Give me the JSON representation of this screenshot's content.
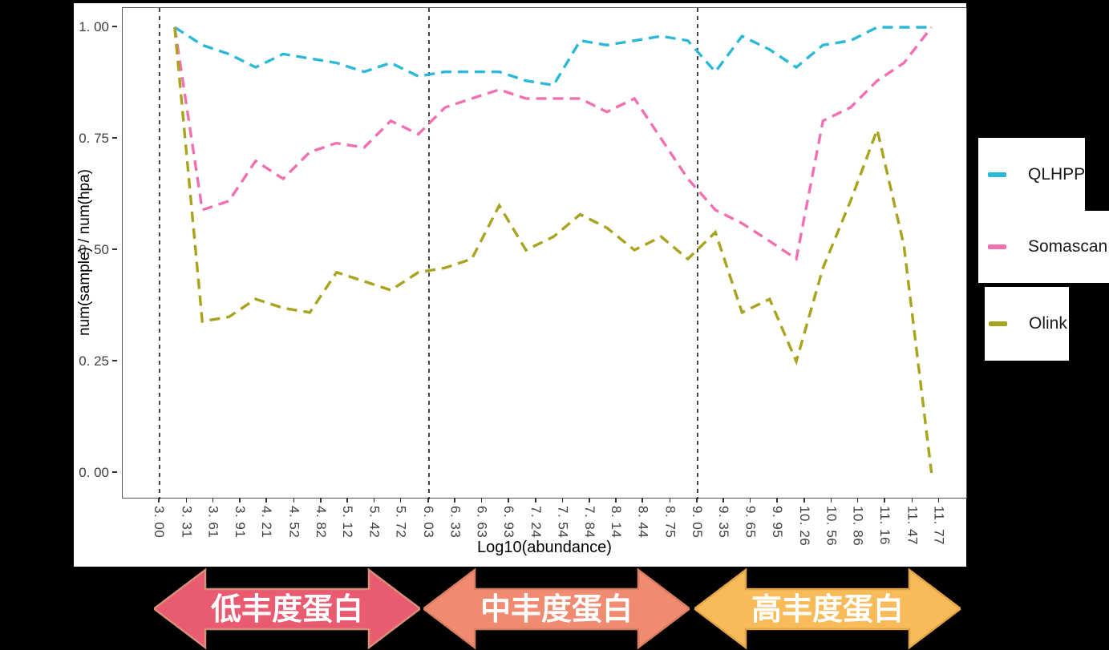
{
  "axes": {
    "x_title": "Log10(abundance)",
    "y_title": "num(sample) / num(hpa)"
  },
  "chart_data": {
    "type": "line",
    "line_style": "dashed",
    "grid": false,
    "legend_position": "right-outside",
    "xlabel": "Log10(abundance)",
    "ylabel": "num(sample) / num(hpa)",
    "xlim": [
      2.59,
      12.09
    ],
    "ylim": [
      -0.06,
      1.04
    ],
    "x_tick_values": [
      3.0,
      3.31,
      3.61,
      3.91,
      4.21,
      4.52,
      4.82,
      5.12,
      5.42,
      5.72,
      6.03,
      6.33,
      6.63,
      6.93,
      7.24,
      7.54,
      7.84,
      8.14,
      8.44,
      8.75,
      9.05,
      9.35,
      9.65,
      9.95,
      10.26,
      10.56,
      10.86,
      11.16,
      11.47,
      11.77
    ],
    "x_tick_labels": [
      "3. 00",
      "3. 31",
      "3. 61",
      "3. 91",
      "4. 21",
      "4. 52",
      "4. 82",
      "5. 12",
      "5. 42",
      "5. 72",
      "6. 03",
      "6. 33",
      "6. 63",
      "6. 93",
      "7. 24",
      "7. 54",
      "7. 84",
      "8. 14",
      "8. 44",
      "8. 75",
      "9. 05",
      "9. 35",
      "9. 65",
      "9. 95",
      "10. 26",
      "10. 56",
      "10. 86",
      "11. 16",
      "11. 47",
      "11. 77"
    ],
    "y_tick_values": [
      0.0,
      0.25,
      0.5,
      0.75,
      1.0
    ],
    "y_tick_labels": [
      "0. 00",
      "0. 25",
      "0. 50",
      "0. 75",
      "1. 00"
    ],
    "vline_x": [
      3.0,
      6.03,
      9.05
    ],
    "vline_color": "#1a1a1a",
    "x": [
      3.17,
      3.48,
      3.78,
      4.08,
      4.39,
      4.69,
      4.99,
      5.3,
      5.6,
      5.91,
      6.21,
      6.51,
      6.82,
      7.12,
      7.43,
      7.73,
      8.03,
      8.34,
      8.64,
      8.94,
      9.25,
      9.55,
      9.86,
      10.16,
      10.46,
      10.77,
      11.07,
      11.37,
      11.68
    ],
    "series": [
      {
        "name": "QLHPP",
        "color": "#2CB8D8",
        "values": [
          1.0,
          0.96,
          0.94,
          0.91,
          0.94,
          0.93,
          0.92,
          0.9,
          0.92,
          0.89,
          0.9,
          0.9,
          0.9,
          0.88,
          0.87,
          0.97,
          0.96,
          0.97,
          0.98,
          0.97,
          0.9,
          0.98,
          0.95,
          0.91,
          0.96,
          0.97,
          1.0,
          1.0,
          1.0
        ]
      },
      {
        "name": "Somascan",
        "color": "#F170B1",
        "values": [
          1.0,
          0.59,
          0.61,
          0.7,
          0.66,
          0.72,
          0.74,
          0.73,
          0.79,
          0.76,
          0.82,
          0.84,
          0.86,
          0.84,
          0.84,
          0.84,
          0.81,
          0.84,
          0.75,
          0.66,
          0.59,
          0.56,
          0.52,
          0.48,
          0.79,
          0.82,
          0.88,
          0.92,
          1.0
        ]
      },
      {
        "name": "Olink",
        "color": "#A8A41E",
        "values": [
          1.0,
          0.34,
          0.35,
          0.39,
          0.37,
          0.36,
          0.45,
          0.43,
          0.41,
          0.45,
          0.46,
          0.48,
          0.6,
          0.5,
          0.53,
          0.58,
          0.55,
          0.5,
          0.53,
          0.48,
          0.54,
          0.36,
          0.39,
          0.25,
          0.46,
          0.61,
          0.77,
          0.51,
          0.0
        ]
      }
    ]
  },
  "legend": {
    "items": [
      {
        "label": "QLHPP",
        "color": "#2CB8D8"
      },
      {
        "label": "Somascan",
        "color": "#F170B1"
      },
      {
        "label": "Olink",
        "color": "#A8A41E"
      }
    ]
  },
  "arrows": [
    {
      "label": "低丰度蛋白",
      "fill": "#E85B70",
      "border": "#D98E78"
    },
    {
      "label": "中丰度蛋白",
      "fill": "#F08B72",
      "border": "#DA7E62"
    },
    {
      "label": "高丰度蛋白",
      "fill": "#F8BB59",
      "border": "#E3A348"
    }
  ]
}
